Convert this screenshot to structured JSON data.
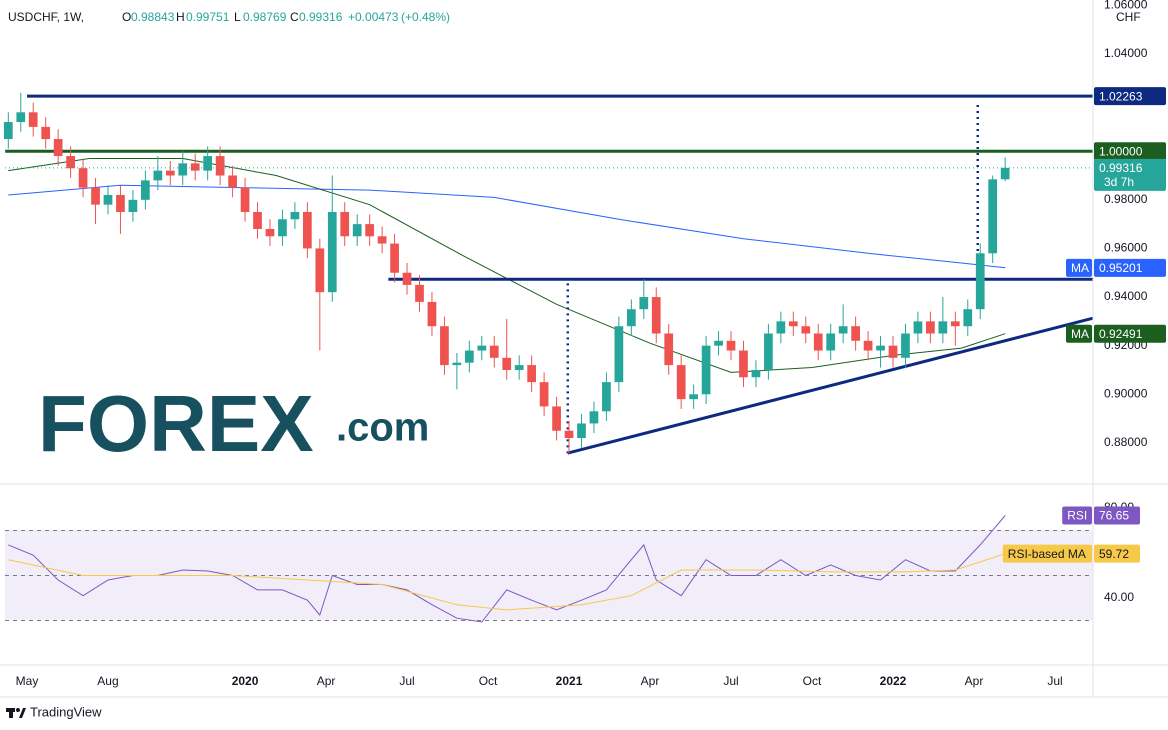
{
  "header": {
    "symbol": "USDCHF, 1W,",
    "ohlc_labels": [
      "O",
      "H",
      "L",
      "C"
    ],
    "change": "+0.00473",
    "change_pct": "(+0.48%)"
  },
  "branding": {
    "logo": "FOREX",
    "logo_suffix": ".com",
    "footer": "TradingView"
  },
  "chart_data": [
    {
      "type": "candlestick",
      "y_unit": "CHF",
      "countdown": "3d 7h",
      "up_color": "#26a69a",
      "down_color": "#ef5350",
      "grid": false,
      "xlim": [
        -3.53,
        171.1
      ],
      "ylim": [
        0.8635,
        1.0622
      ],
      "yticks": [
        {
          "value": 1.06,
          "label": "1.06000"
        },
        {
          "value": 1.04,
          "label": "1.04000"
        },
        {
          "value": 0.98,
          "label": "0.98000"
        },
        {
          "value": 0.96,
          "label": "0.96000"
        },
        {
          "value": 0.94,
          "label": "0.94000"
        },
        {
          "value": 0.92,
          "label": "0.92000"
        },
        {
          "value": 0.9,
          "label": "0.90000"
        },
        {
          "value": 0.88,
          "label": "0.88000"
        }
      ],
      "x": [
        -3,
        -1,
        1,
        3,
        5,
        7,
        9,
        11,
        13,
        15,
        17,
        19,
        21,
        23,
        25,
        27,
        29,
        31,
        33,
        35,
        37,
        39,
        41,
        43,
        45,
        47,
        49,
        51,
        53,
        55,
        57,
        59,
        61,
        63,
        65,
        67,
        69,
        71,
        73,
        75,
        77,
        79,
        81,
        83,
        85,
        87,
        89,
        91,
        93,
        95,
        97,
        99,
        101,
        103,
        105,
        107,
        109,
        111,
        113,
        115,
        117,
        119,
        121,
        123,
        125,
        127,
        129,
        131,
        133,
        135,
        137,
        139,
        141,
        143,
        145,
        147,
        149,
        151,
        153,
        155,
        157
      ],
      "open": [
        1.005,
        1.012,
        1.016,
        1.01,
        1.005,
        0.998,
        0.993,
        0.985,
        0.978,
        0.982,
        0.975,
        0.98,
        0.988,
        0.992,
        0.99,
        0.995,
        0.992,
        0.998,
        0.99,
        0.985,
        0.975,
        0.968,
        0.965,
        0.972,
        0.975,
        0.96,
        0.942,
        0.975,
        0.965,
        0.97,
        0.965,
        0.962,
        0.95,
        0.945,
        0.938,
        0.928,
        0.912,
        0.913,
        0.918,
        0.92,
        0.915,
        0.91,
        0.912,
        0.905,
        0.895,
        0.885,
        0.882,
        0.888,
        0.893,
        0.905,
        0.928,
        0.935,
        0.94,
        0.925,
        0.912,
        0.898,
        0.9,
        0.92,
        0.922,
        0.918,
        0.907,
        0.91,
        0.925,
        0.93,
        0.928,
        0.925,
        0.918,
        0.925,
        0.928,
        0.922,
        0.918,
        0.92,
        0.915,
        0.925,
        0.93,
        0.925,
        0.93,
        0.928,
        0.935,
        0.958,
        0.98843
      ],
      "high": [
        1.016,
        1.024,
        1.02,
        1.014,
        1.009,
        1.002,
        0.997,
        0.989,
        0.986,
        0.986,
        0.984,
        0.992,
        0.998,
        0.996,
        1.0,
        0.999,
        1.002,
        1.002,
        0.994,
        0.989,
        0.979,
        0.972,
        0.976,
        0.979,
        0.979,
        0.964,
        0.99,
        0.979,
        0.974,
        0.974,
        0.969,
        0.966,
        0.954,
        0.949,
        0.942,
        0.932,
        0.917,
        0.922,
        0.924,
        0.924,
        0.931,
        0.916,
        0.916,
        0.909,
        0.899,
        0.889,
        0.892,
        0.897,
        0.909,
        0.932,
        0.939,
        0.9473,
        0.944,
        0.929,
        0.916,
        0.904,
        0.924,
        0.926,
        0.926,
        0.922,
        0.914,
        0.929,
        0.934,
        0.934,
        0.932,
        0.929,
        0.929,
        0.937,
        0.932,
        0.926,
        0.924,
        0.924,
        0.929,
        0.934,
        0.934,
        0.94,
        0.934,
        0.939,
        0.962,
        0.99,
        0.99751
      ],
      "low": [
        1.001,
        1.008,
        1.006,
        1.001,
        0.994,
        0.989,
        0.981,
        0.97,
        0.974,
        0.966,
        0.971,
        0.976,
        0.984,
        0.986,
        0.986,
        0.988,
        0.988,
        0.986,
        0.981,
        0.971,
        0.964,
        0.961,
        0.961,
        0.968,
        0.956,
        0.918,
        0.938,
        0.961,
        0.961,
        0.961,
        0.958,
        0.946,
        0.941,
        0.934,
        0.924,
        0.908,
        0.902,
        0.909,
        0.914,
        0.911,
        0.906,
        0.906,
        0.901,
        0.891,
        0.881,
        0.8757,
        0.878,
        0.884,
        0.889,
        0.901,
        0.924,
        0.931,
        0.921,
        0.908,
        0.894,
        0.894,
        0.896,
        0.916,
        0.914,
        0.903,
        0.903,
        0.906,
        0.921,
        0.924,
        0.921,
        0.914,
        0.914,
        0.921,
        0.918,
        0.914,
        0.911,
        0.911,
        0.911,
        0.921,
        0.921,
        0.921,
        0.92,
        0.924,
        0.931,
        0.954,
        0.98769
      ],
      "close": [
        1.012,
        1.016,
        1.01,
        1.005,
        0.998,
        0.993,
        0.985,
        0.978,
        0.982,
        0.975,
        0.98,
        0.988,
        0.992,
        0.99,
        0.995,
        0.992,
        0.998,
        0.99,
        0.985,
        0.975,
        0.968,
        0.965,
        0.972,
        0.975,
        0.96,
        0.942,
        0.975,
        0.965,
        0.97,
        0.965,
        0.962,
        0.95,
        0.945,
        0.938,
        0.928,
        0.912,
        0.913,
        0.918,
        0.92,
        0.915,
        0.91,
        0.912,
        0.905,
        0.895,
        0.885,
        0.882,
        0.888,
        0.893,
        0.905,
        0.928,
        0.935,
        0.94,
        0.925,
        0.912,
        0.898,
        0.9,
        0.92,
        0.922,
        0.918,
        0.907,
        0.91,
        0.925,
        0.93,
        0.928,
        0.925,
        0.918,
        0.925,
        0.928,
        0.922,
        0.918,
        0.92,
        0.915,
        0.925,
        0.93,
        0.925,
        0.93,
        0.928,
        0.935,
        0.958,
        0.98843,
        0.99316
      ],
      "lines": [
        {
          "name": "MA",
          "color": "#2962ff",
          "tag_color": "#2962ff",
          "x": [
            -3,
            15,
            35,
            55,
            75,
            95,
            115,
            135,
            150,
            157
          ],
          "values": [
            0.982,
            0.986,
            0.985,
            0.984,
            0.981,
            0.972,
            0.964,
            0.958,
            0.954,
            0.95201
          ]
        },
        {
          "name": "MA",
          "color": "#1b5e20",
          "tag_color": "#1b5e20",
          "x": [
            -3,
            10,
            25,
            40,
            55,
            70,
            85,
            100,
            113,
            126,
            139,
            150,
            157
          ],
          "values": [
            0.992,
            0.997,
            0.997,
            0.99,
            0.978,
            0.957,
            0.937,
            0.921,
            0.909,
            0.911,
            0.916,
            0.919,
            0.92491
          ]
        }
      ],
      "levels": [
        {
          "value": 1.02263,
          "from": 0,
          "color": "#0d2a80",
          "tag": true
        },
        {
          "value": 1.0,
          "value_label": "1.00000",
          "from": -3.5,
          "color": "#1b5e20",
          "tag": true
        },
        {
          "value": 0.9473,
          "from": 58,
          "color": "#0d2a80",
          "tag": false
        }
      ],
      "trendline": {
        "color": "#0d2a80",
        "x": [
          86.8,
          171.1
        ],
        "values": [
          0.8758,
          0.9313
        ]
      },
      "markers": [
        {
          "x": 86.8,
          "values": [
            0.8757,
            0.9473
          ]
        },
        {
          "x": 152.6,
          "values": [
            1.019,
            0.9473
          ]
        }
      ]
    },
    {
      "type": "line",
      "xlim": [
        -3.53,
        171.1
      ],
      "ylim": [
        10.2,
        90.2
      ],
      "band": [
        30,
        70
      ],
      "midline": 50,
      "yticks": [
        {
          "value": 80,
          "label": "80.00"
        },
        {
          "value": 40,
          "label": "40.00"
        }
      ],
      "xticks": [
        {
          "value": 0,
          "label": "May"
        },
        {
          "value": 13,
          "label": "Aug"
        },
        {
          "value": 35,
          "label": "2020"
        },
        {
          "value": 48,
          "label": "Apr"
        },
        {
          "value": 61,
          "label": "Jul"
        },
        {
          "value": 74,
          "label": "Oct"
        },
        {
          "value": 87,
          "label": "2021"
        },
        {
          "value": 100,
          "label": "Apr"
        },
        {
          "value": 113,
          "label": "Jul"
        },
        {
          "value": 126,
          "label": "Oct"
        },
        {
          "value": 139,
          "label": "2022"
        },
        {
          "value": 152,
          "label": "Apr"
        },
        {
          "value": 165,
          "label": "Jul"
        }
      ],
      "series": [
        {
          "name": "RSI",
          "color": "#7e57c2",
          "x": [
            -3,
            1,
            5,
            9,
            13,
            17,
            21,
            25,
            29,
            33,
            37,
            41,
            45,
            47,
            49,
            53,
            57,
            61,
            65,
            69,
            73,
            77,
            81,
            85,
            89,
            93,
            97,
            99,
            101,
            105,
            109,
            113,
            117,
            121,
            125,
            129,
            133,
            137,
            141,
            145,
            149,
            153,
            157
          ],
          "values": [
            63.6,
            59,
            48,
            41,
            48,
            50,
            50,
            52.4,
            52,
            50,
            43.6,
            43.6,
            39,
            32.4,
            50,
            46,
            46,
            43.6,
            37,
            31,
            29.3,
            43.6,
            39,
            34.7,
            39,
            43.6,
            57,
            63.6,
            48,
            41,
            57,
            50,
            50,
            57,
            50,
            54.7,
            50,
            48,
            57,
            52,
            52,
            63.6,
            76.65
          ]
        },
        {
          "name": "RSI-based MA",
          "color": "#f7c948",
          "x": [
            -3,
            9,
            21,
            33,
            45,
            57,
            69,
            77,
            89,
            97,
            105,
            117,
            129,
            141,
            149,
            157
          ],
          "values": [
            57,
            50,
            50,
            50,
            48,
            46,
            37,
            34.7,
            37,
            41,
            52.4,
            52.4,
            51.6,
            51.6,
            52.4,
            59.72
          ]
        }
      ]
    }
  ]
}
